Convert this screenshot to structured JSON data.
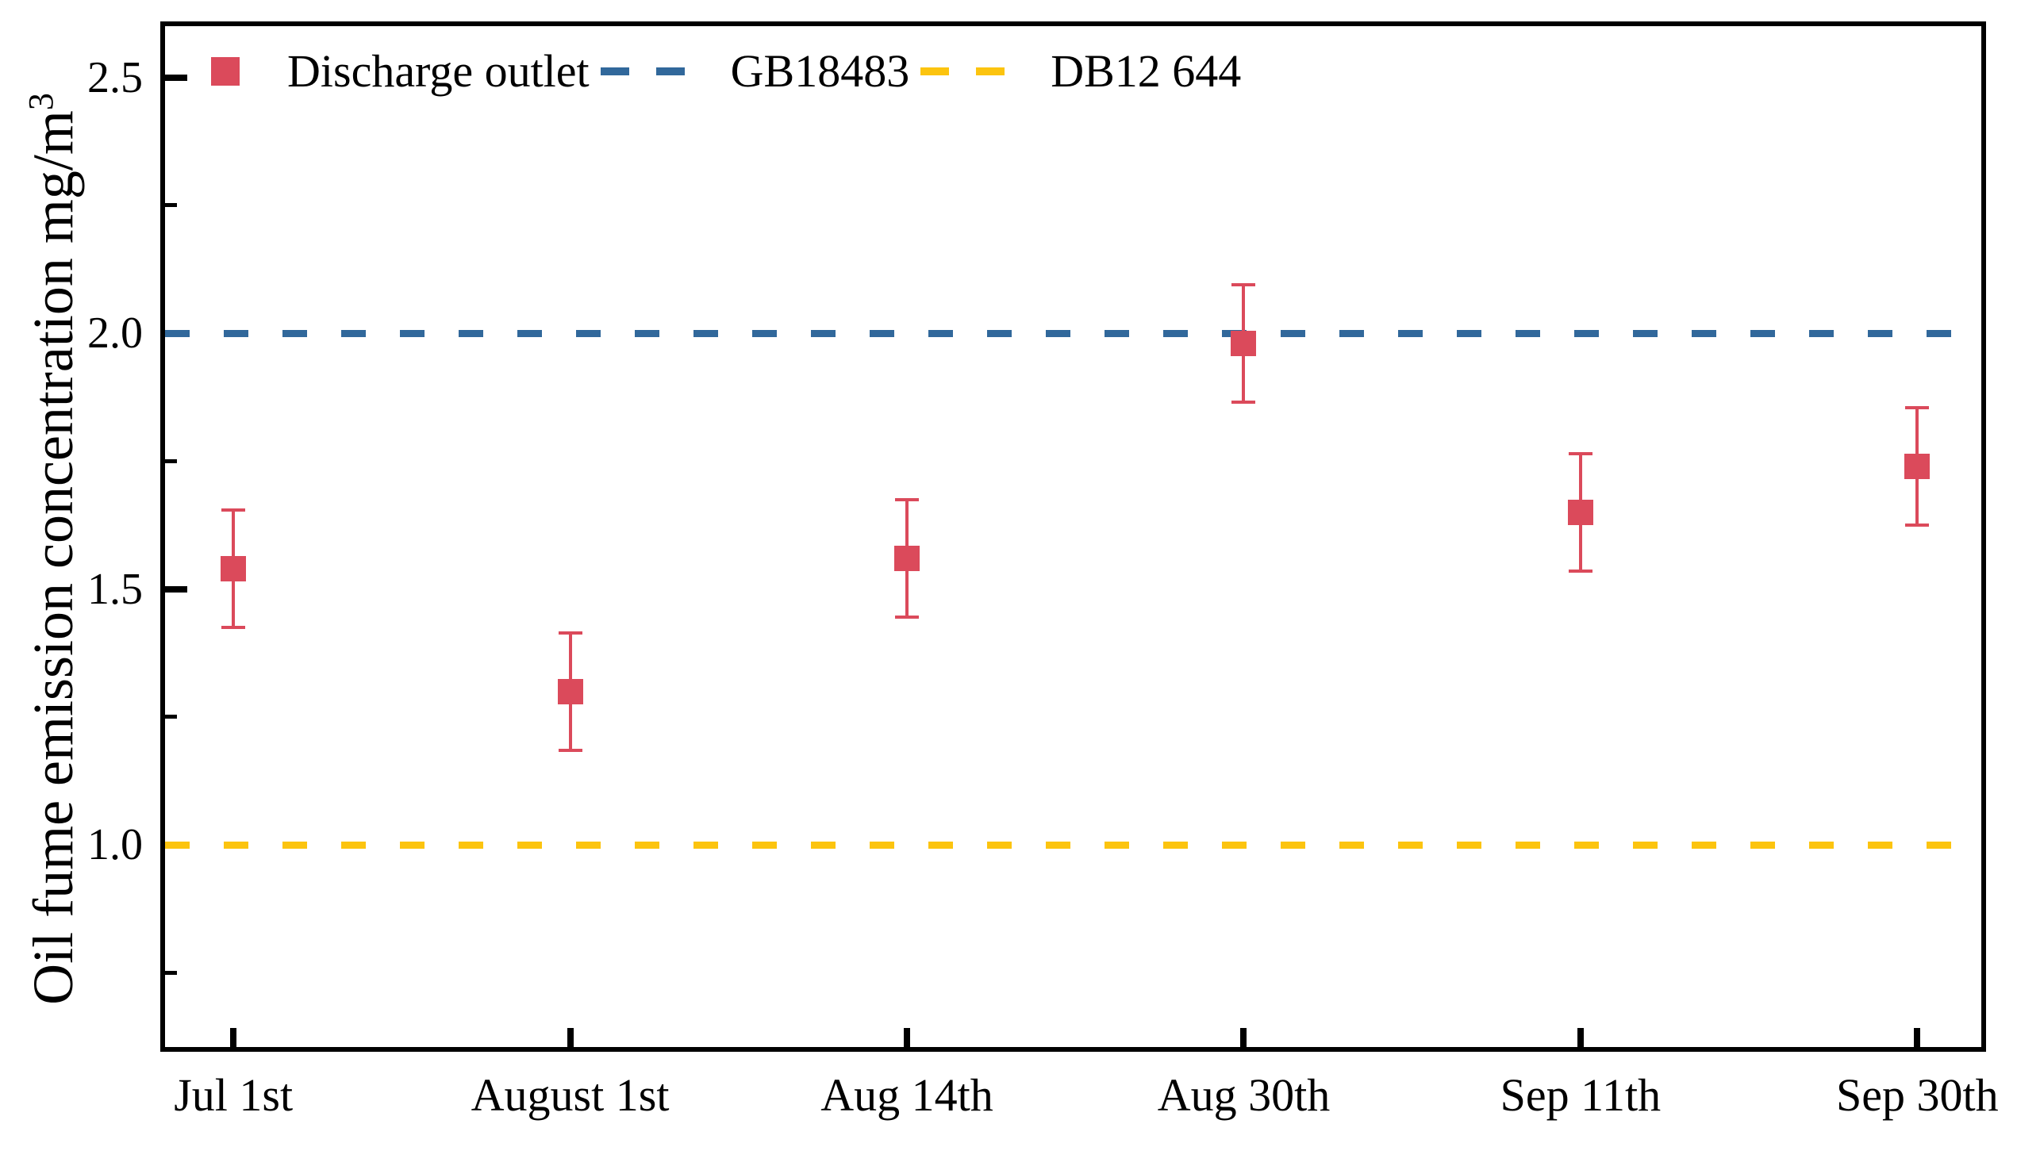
{
  "figure": {
    "ylabel_main": "Oil fume emission concentration mg/m",
    "ylabel_sup": "3"
  },
  "chart_data": {
    "type": "scatter",
    "title": "",
    "xlabel": "",
    "ylabel": "Oil fume emission concentration mg/m^3",
    "categories": [
      "Jul 1st",
      "August 1st",
      "Aug 14th",
      "Aug 30th",
      "Sep 11th",
      "Sep 30th"
    ],
    "series": [
      {
        "name": "Discharge outlet",
        "type": "scatter_with_errorbars",
        "marker": "square",
        "color": "#DB4A5B",
        "values": [
          1.54,
          1.3,
          1.56,
          1.98,
          1.65,
          1.74
        ],
        "errors": [
          0.115,
          0.115,
          0.115,
          0.115,
          0.115,
          0.115
        ]
      }
    ],
    "reference_lines": [
      {
        "name": "GB18483",
        "value": 2.0,
        "style": "dashed",
        "color": "#31689B"
      },
      {
        "name": "DB12 644",
        "value": 1.0,
        "style": "dashed",
        "color": "#FCC40F"
      }
    ],
    "ylim": [
      0.605,
      2.605
    ],
    "xlim": [
      0.79,
      6.19
    ],
    "yticks": [
      1.0,
      1.5,
      2.0,
      2.5
    ],
    "ytick_labels": [
      "1.0",
      "1.5",
      "2.0",
      "2.5"
    ],
    "yticks_minor": [
      0.75,
      1.25,
      1.75,
      2.25
    ],
    "grid": false,
    "legend_position": "top-left-inside"
  },
  "legend": {
    "items": [
      {
        "label": "Discharge outlet",
        "swatch": "square",
        "color": "#DB4A5B"
      },
      {
        "label": "GB18483",
        "swatch": "dashes",
        "color": "#31689B"
      },
      {
        "label": "DB12 644",
        "swatch": "dashes",
        "color": "#FCC40F"
      }
    ]
  }
}
